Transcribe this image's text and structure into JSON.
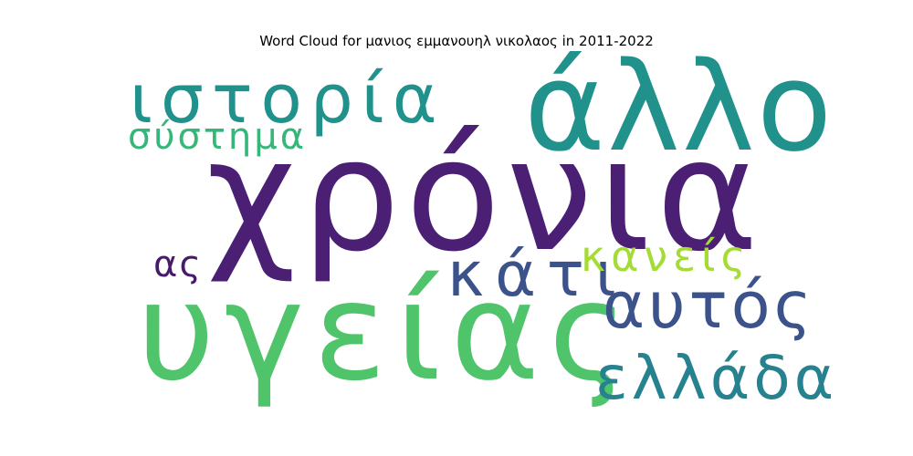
{
  "title": "Word Cloud for μανιος εμμανουηλ νικολαος in 2011-2022",
  "words": {
    "xronia": {
      "text": "χρόνια",
      "color": "#4b1f74"
    },
    "ygeias": {
      "text": "υγείας",
      "color": "#4fc46a"
    },
    "allo": {
      "text": "άλλο",
      "color": "#21918c"
    },
    "istoria": {
      "text": "ιστορία",
      "color": "#21918c"
    },
    "systima": {
      "text": "σύστημα",
      "color": "#35b779"
    },
    "kati": {
      "text": "κάτι",
      "color": "#3b528b"
    },
    "kaneis": {
      "text": "κανείς",
      "color": "#a5db36"
    },
    "aftos": {
      "text": "αυτός",
      "color": "#3b528b"
    },
    "ellada": {
      "text": "ελλάδα",
      "color": "#26828e"
    },
    "as": {
      "text": "ας",
      "color": "#481a6c"
    }
  }
}
